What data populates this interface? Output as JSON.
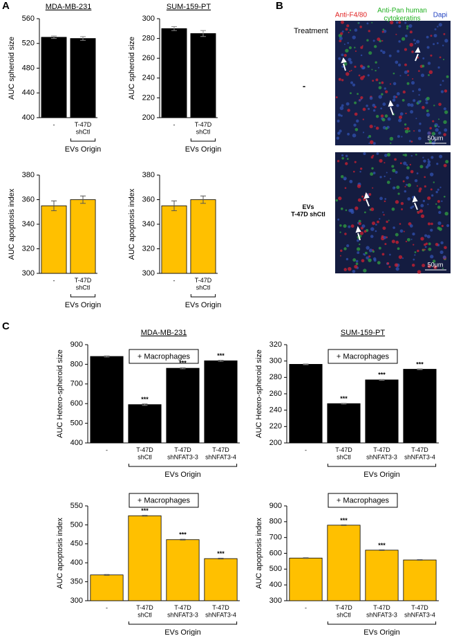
{
  "panels": {
    "a": "A",
    "b": "B",
    "c": "C"
  },
  "panel_b": {
    "stains": [
      "Anti-F4/80",
      "Anti-Pan human\ncytokeratins",
      "Dapi"
    ],
    "row_header": "Treatment",
    "rows": [
      "-",
      "EVs\nT-47D shCtl"
    ],
    "scale_bars": [
      "50μm",
      "50μm"
    ]
  },
  "chart_data": [
    {
      "type": "bar",
      "title": "MDA-MB-231",
      "ylabel": "AUC spheroid size",
      "xlabel": "EVs Origin",
      "categories": [
        "-",
        "T-47D\nshCtl"
      ],
      "values": [
        530,
        528
      ],
      "errors": [
        2,
        3
      ],
      "color": "#000000",
      "ylim": [
        400,
        560
      ],
      "yticks": [
        400,
        440,
        480,
        520,
        560
      ]
    },
    {
      "type": "bar",
      "title": "SUM-159-PT",
      "ylabel": "AUC spheroid size",
      "xlabel": "EVs Origin",
      "categories": [
        "-",
        "T-47D\nshCtl"
      ],
      "values": [
        290,
        285
      ],
      "errors": [
        2,
        3
      ],
      "color": "#000000",
      "ylim": [
        200,
        300
      ],
      "yticks": [
        200,
        220,
        240,
        260,
        280,
        300
      ]
    },
    {
      "type": "bar",
      "ylabel": "AUC apoptosis index",
      "xlabel": "EVs Origin",
      "categories": [
        "-",
        "T-47D\nshCtl"
      ],
      "values": [
        355,
        360
      ],
      "errors": [
        4,
        3
      ],
      "color": "#ffc000",
      "ylim": [
        300,
        380
      ],
      "yticks": [
        300,
        320,
        340,
        360,
        380
      ]
    },
    {
      "type": "bar",
      "ylabel": "AUC apoptosis index",
      "xlabel": "EVs Origin",
      "categories": [
        "-",
        "T-47D\nshCtl"
      ],
      "values": [
        355,
        360
      ],
      "errors": [
        4,
        3
      ],
      "color": "#ffc000",
      "ylim": [
        300,
        380
      ],
      "yticks": [
        300,
        320,
        340,
        360,
        380
      ]
    },
    {
      "type": "bar",
      "title": "MDA-MB-231",
      "annotation": "+ Macrophages",
      "ylabel": "AUC Hetero-spheroid size",
      "xlabel": "EVs Origin",
      "categories": [
        "-",
        "T-47D\nshCtl",
        "T-47D\nshNFAT3-3",
        "T-47D\nshNFAT3-4"
      ],
      "values": [
        840,
        595,
        780,
        818
      ],
      "errors": [
        3,
        4,
        3,
        3
      ],
      "bar_labels": [
        null,
        "***",
        "***",
        "***"
      ],
      "color": "#000000",
      "ylim": [
        400,
        900
      ],
      "yticks": [
        400,
        500,
        600,
        700,
        800,
        900
      ]
    },
    {
      "type": "bar",
      "title": "SUM-159-PT",
      "annotation": "+ Macrophages",
      "ylabel": "AUC Hetero-spheroid size",
      "xlabel": "EVs Origin",
      "categories": [
        "-",
        "T-47D\nshCtl",
        "T-47D\nshNFAT3-3",
        "T-47D\nshNFAT3-4"
      ],
      "values": [
        296,
        248,
        277,
        290
      ],
      "errors": [
        0.5,
        0.5,
        0.5,
        0.5
      ],
      "bar_labels": [
        null,
        "***",
        "***",
        "***"
      ],
      "color": "#000000",
      "ylim": [
        200,
        320
      ],
      "yticks": [
        200,
        220,
        240,
        260,
        280,
        300,
        320
      ]
    },
    {
      "type": "bar",
      "annotation": "+ Macrophages",
      "ylabel": "AUC apoptosis index",
      "xlabel": "EVs Origin",
      "categories": [
        "-",
        "T-47D\nshCtl",
        "T-47D\nshNFAT3-3",
        "T-47D\nshNFAT3-4"
      ],
      "values": [
        368,
        524,
        461,
        411
      ],
      "errors": [
        1,
        1,
        1,
        1
      ],
      "bar_labels": [
        null,
        "***",
        "***",
        "***"
      ],
      "color": "#ffc000",
      "ylim": [
        300,
        550
      ],
      "yticks": [
        300,
        350,
        400,
        450,
        500,
        550
      ]
    },
    {
      "type": "bar",
      "annotation": "+ Macrophages",
      "ylabel": "AUC apoptosis index",
      "xlabel": "EVs Origin",
      "categories": [
        "-",
        "T-47D\nshCtl",
        "T-47D\nshNFAT3-3",
        "T-47D\nshNFAT3-4"
      ],
      "values": [
        570,
        778,
        620,
        558
      ],
      "errors": [
        2,
        2,
        2,
        2
      ],
      "bar_labels": [
        null,
        "***",
        "***",
        null
      ],
      "color": "#ffc000",
      "ylim": [
        300,
        900
      ],
      "yticks": [
        300,
        400,
        500,
        600,
        700,
        800,
        900
      ]
    }
  ]
}
